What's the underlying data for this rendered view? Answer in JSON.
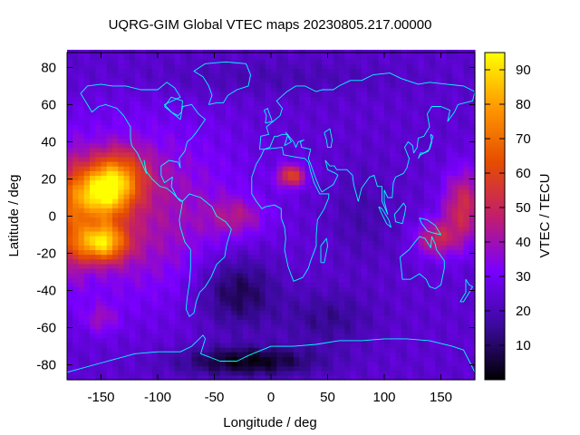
{
  "chart_data": {
    "type": "heatmap",
    "title": "UQRG-GIM Global VTEC maps 20230805.217.00000",
    "xlabel": "Longitude / deg",
    "ylabel": "Latitude / deg",
    "colorbar_label": "VTEC / TECU",
    "xlim": [
      -180,
      180
    ],
    "ylim": [
      -88,
      88
    ],
    "x_ticks": [
      -150,
      -100,
      -50,
      0,
      50,
      100,
      150
    ],
    "y_ticks": [
      -80,
      -60,
      -40,
      -20,
      0,
      20,
      40,
      60,
      80
    ],
    "colorbar_range": [
      0,
      95
    ],
    "colorbar_ticks": [
      10,
      20,
      30,
      40,
      50,
      60,
      70,
      80,
      90
    ],
    "grid_resolution_deg": {
      "lon": 5,
      "lat": 2.5
    },
    "colormap": [
      "#000000",
      "#3b0a9e",
      "#7a00ff",
      "#c21e6b",
      "#e64d00",
      "#ff9900",
      "#ffff00"
    ],
    "coastline_color": "#00ffff",
    "vtec_peaks": [
      {
        "region": "Central Pacific east",
        "lon": -145,
        "lat": 8,
        "vtec": 85
      },
      {
        "region": "Central Pacific south",
        "lon": -148,
        "lat": -15,
        "vtec": 88
      },
      {
        "region": "North Africa",
        "lon": 18,
        "lat": 22,
        "vtec": 63
      },
      {
        "region": "Western Pacific",
        "lon": 160,
        "lat": 5,
        "vtec": 60
      }
    ]
  }
}
